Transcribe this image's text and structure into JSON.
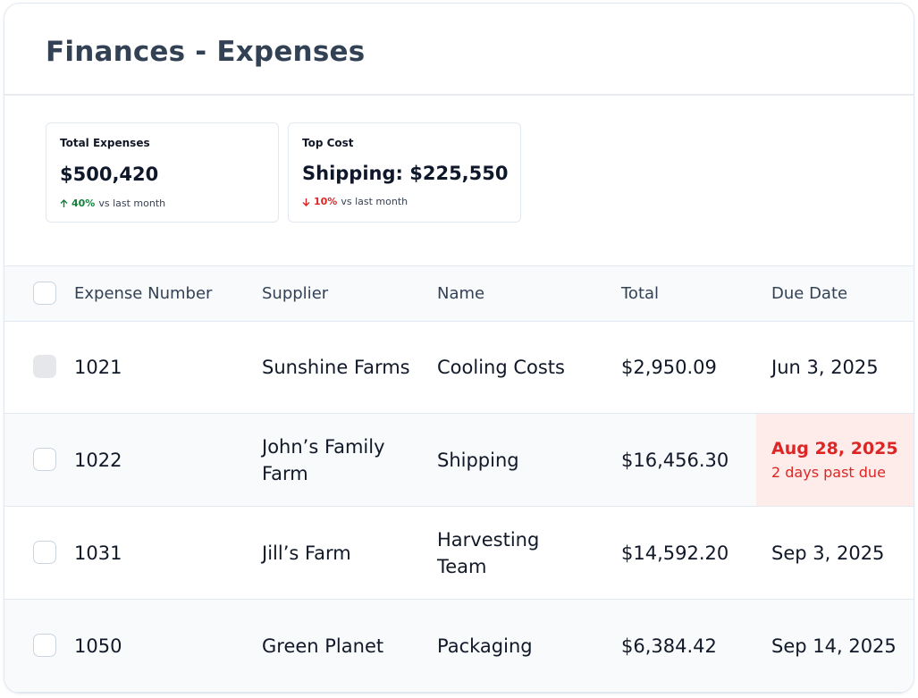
{
  "header": {
    "title": "Finances - Expenses"
  },
  "stats": [
    {
      "label": "Total Expenses",
      "value": "$500,420",
      "change": "40%",
      "comparison": "vs last month"
    },
    {
      "label": "Top Cost",
      "value": "Shipping: $225,550",
      "change": "10%",
      "comparison": "vs last month"
    }
  ],
  "table": {
    "columns": [
      "Expense Number",
      "Supplier",
      "Name",
      "Total",
      "Due Date"
    ],
    "rows": [
      {
        "number": "1021",
        "supplier": "Sunshine Farms",
        "name": "Cooling Costs",
        "total": "$2,950.09",
        "due": "Jun 3, 2025"
      },
      {
        "number": "1022",
        "supplier": "John’s Family Farm",
        "name": "Shipping",
        "total": "$16,456.30",
        "due": "Aug 28, 2025",
        "note": "2 days past due"
      },
      {
        "number": "1031",
        "supplier": "Jill’s Farm",
        "name": "Harvesting Team",
        "total": "$14,592.20",
        "due": "Sep 3, 2025"
      },
      {
        "number": "1050",
        "supplier": "Green Planet",
        "name": "Packaging",
        "total": "$6,384.42",
        "due": "Sep 14, 2025"
      }
    ]
  }
}
